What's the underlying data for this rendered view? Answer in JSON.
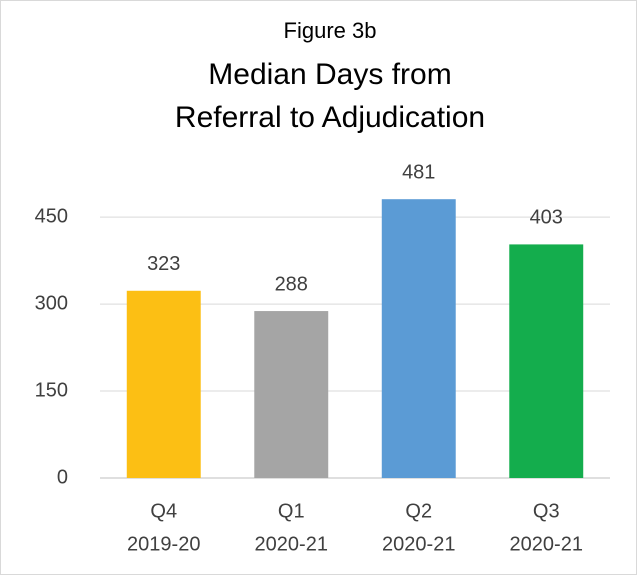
{
  "chart_data": {
    "type": "bar",
    "figure_label": "Figure 3b",
    "title": [
      "Median Days from",
      "Referral to Adjudication"
    ],
    "categories": [
      [
        "Q4",
        "2019-20"
      ],
      [
        "Q1",
        "2020-21"
      ],
      [
        "Q2",
        "2020-21"
      ],
      [
        "Q3",
        "2020-21"
      ]
    ],
    "values": [
      323,
      288,
      481,
      403
    ],
    "colors": [
      "#fcbf14",
      "#a5a5a5",
      "#5b9bd5",
      "#14ad4d"
    ],
    "ylim": [
      0,
      540
    ],
    "yticks": [
      0,
      150,
      300,
      450
    ],
    "grid": true,
    "data_labels": true
  }
}
